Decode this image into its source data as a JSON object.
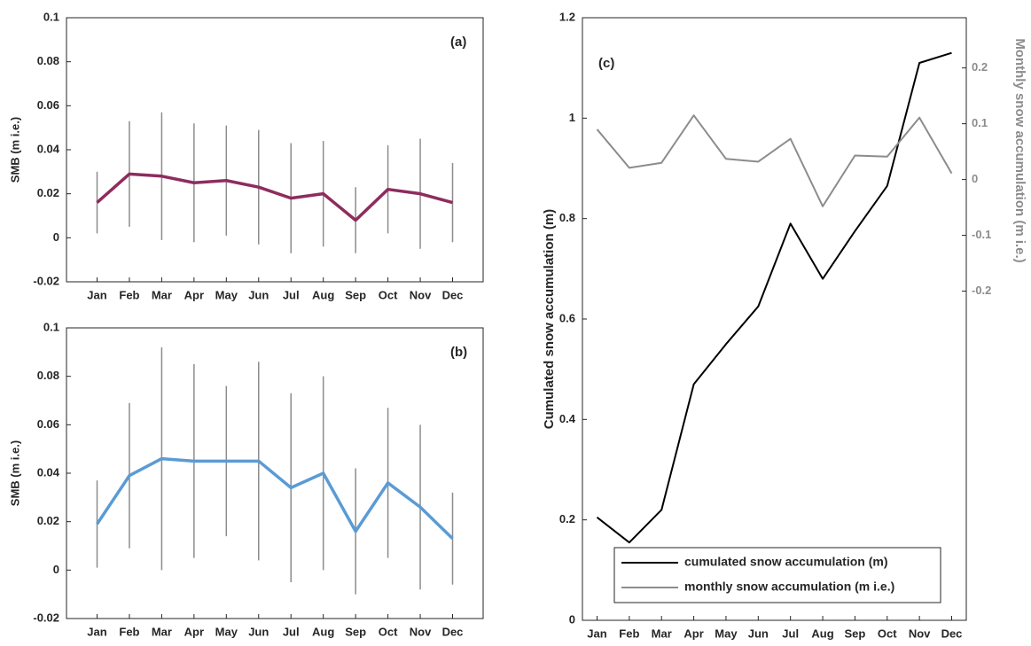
{
  "chart_data": [
    {
      "type": "line",
      "annotation": "(a)",
      "y_label": "SMB (m i.e.)",
      "categories": [
        "Jan",
        "Feb",
        "Mar",
        "Apr",
        "May",
        "Jun",
        "Jul",
        "Aug",
        "Sep",
        "Oct",
        "Nov",
        "Dec"
      ],
      "values": [
        0.016,
        0.029,
        0.028,
        0.025,
        0.026,
        0.023,
        0.018,
        0.02,
        0.008,
        0.022,
        0.02,
        0.016
      ],
      "errors": [
        0.014,
        0.024,
        0.029,
        0.027,
        0.025,
        0.026,
        0.025,
        0.024,
        0.015,
        0.02,
        0.025,
        0.018
      ],
      "color": "#8e2c5e",
      "error_color": "#8c8c8c",
      "ylim": [
        -0.02,
        0.1
      ],
      "yticks": [
        -0.02,
        0,
        0.02,
        0.04,
        0.06,
        0.08,
        0.1
      ]
    },
    {
      "type": "line",
      "annotation": "(b)",
      "y_label": "SMB (m i.e.)",
      "categories": [
        "Jan",
        "Feb",
        "Mar",
        "Apr",
        "May",
        "Jun",
        "Jul",
        "Aug",
        "Sep",
        "Oct",
        "Nov",
        "Dec"
      ],
      "values": [
        0.019,
        0.039,
        0.046,
        0.045,
        0.045,
        0.045,
        0.034,
        0.04,
        0.016,
        0.036,
        0.026,
        0.013
      ],
      "errors": [
        0.018,
        0.03,
        0.046,
        0.04,
        0.031,
        0.041,
        0.039,
        0.04,
        0.026,
        0.031,
        0.034,
        0.019
      ],
      "color": "#5b9bd5",
      "error_color": "#8c8c8c",
      "ylim": [
        -0.02,
        0.1
      ],
      "yticks": [
        -0.02,
        0,
        0.02,
        0.04,
        0.06,
        0.08,
        0.1
      ]
    },
    {
      "type": "line",
      "annotation": "(c)",
      "y_label": "Cumulated snow accumulation (m)",
      "y2_label": "Monthly snow accumulation (m i.e.)",
      "categories": [
        "Jan",
        "Feb",
        "Mar",
        "Apr",
        "May",
        "Jun",
        "Jul",
        "Aug",
        "Sep",
        "Oct",
        "Nov",
        "Dec"
      ],
      "series": [
        {
          "name": "cumulated snow accumulation (m)",
          "color": "#000000",
          "values": [
            0.205,
            0.155,
            0.22,
            0.47,
            0.55,
            0.625,
            0.79,
            0.68,
            0.775,
            0.865,
            1.11,
            1.13
          ]
        },
        {
          "name": "monthly snow accumulation (m i.e.)",
          "color": "#8c8c8c",
          "axis": "y2",
          "values": [
            0.09,
            0.021,
            0.03,
            0.115,
            0.037,
            0.032,
            0.073,
            -0.048,
            0.043,
            0.041,
            0.111,
            0.011
          ]
        }
      ],
      "ylim": [
        0,
        1.2
      ],
      "yticks": [
        0,
        0.2,
        0.4,
        0.6,
        0.8,
        1,
        1.2
      ],
      "y2lim": [
        -0.79,
        0.29
      ],
      "y2ticks": [
        -0.2,
        -0.1,
        0,
        0.1,
        0.2
      ],
      "legend": "lower right"
    }
  ]
}
